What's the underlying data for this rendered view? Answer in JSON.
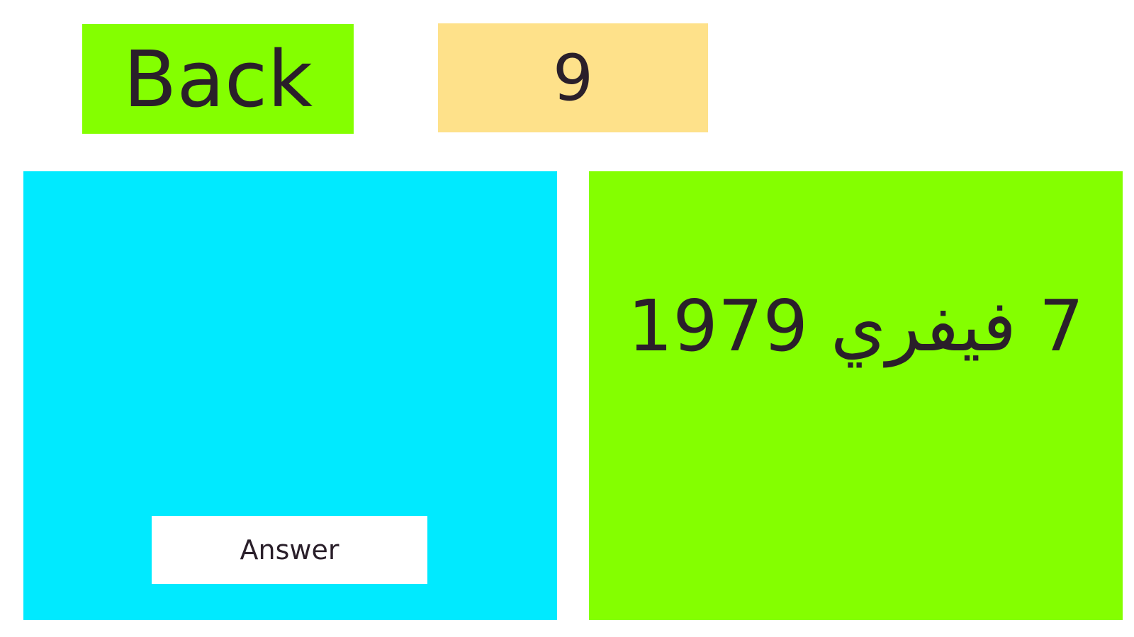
{
  "back_label": "Back",
  "counter": "9",
  "answer_label": "Answer",
  "card_text": "7 فيفري 1979",
  "colors": {
    "green": "#84ff00",
    "cyan": "#00eaff",
    "yellow": "#fee18a"
  }
}
